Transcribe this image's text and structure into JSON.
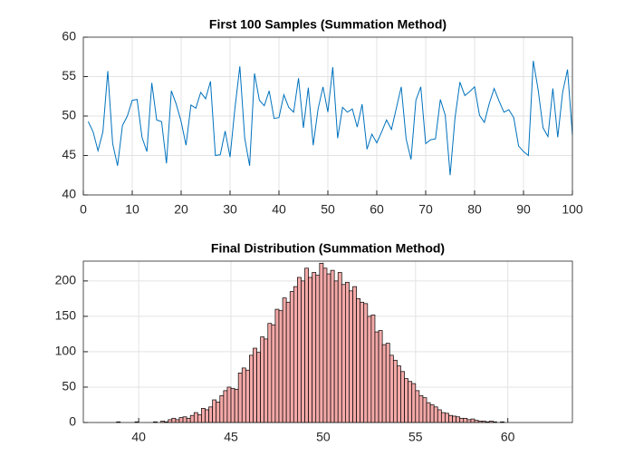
{
  "chart_data": [
    {
      "type": "line",
      "title": "First 100 Samples (Summation Method)",
      "color": "#0072bd",
      "grid": true,
      "x": [
        1,
        2,
        3,
        4,
        5,
        6,
        7,
        8,
        9,
        10,
        11,
        12,
        13,
        14,
        15,
        16,
        17,
        18,
        19,
        20,
        21,
        22,
        23,
        24,
        25,
        26,
        27,
        28,
        29,
        30,
        31,
        32,
        33,
        34,
        35,
        36,
        37,
        38,
        39,
        40,
        41,
        42,
        43,
        44,
        45,
        46,
        47,
        48,
        49,
        50,
        51,
        52,
        53,
        54,
        55,
        56,
        57,
        58,
        59,
        60,
        61,
        62,
        63,
        64,
        65,
        66,
        67,
        68,
        69,
        70,
        71,
        72,
        73,
        74,
        75,
        76,
        77,
        78,
        79,
        80,
        81,
        82,
        83,
        84,
        85,
        86,
        87,
        88,
        89,
        90,
        91,
        92,
        93,
        94,
        95,
        96,
        97,
        98,
        99,
        100
      ],
      "values": [
        49.3,
        48,
        45.6,
        48,
        55.7,
        46.5,
        43.7,
        48.8,
        50,
        52,
        52.1,
        47.3,
        45.5,
        54.2,
        49.5,
        49.3,
        44,
        53.2,
        51.5,
        49.3,
        46.3,
        51.4,
        51,
        53,
        52.2,
        54.4,
        45,
        45.1,
        48.1,
        44.8,
        51,
        56.3,
        47.2,
        43.7,
        55.4,
        52,
        51.3,
        53.2,
        49.7,
        49.8,
        52.7,
        51.1,
        50.5,
        54.8,
        48.5,
        53.6,
        46.3,
        50.9,
        53.7,
        50.5,
        56.2,
        47.2,
        51.1,
        50.5,
        50.9,
        48.6,
        51.5,
        45.8,
        47.7,
        46.6,
        48,
        49.5,
        48.3,
        51,
        53.7,
        47.1,
        44.5,
        52,
        53.7,
        46.5,
        47,
        47.1,
        52.1,
        50.1,
        42.5,
        49.8,
        54.3,
        52.6,
        53.1,
        53.7,
        50.1,
        49.2,
        51.6,
        53.5,
        51.9,
        50.5,
        50.8,
        49.8,
        46.2,
        45.5,
        45,
        57,
        53.3,
        48.5,
        47.4,
        53.5,
        47.3,
        53,
        55.9,
        47.6
      ],
      "xlim": [
        0,
        100
      ],
      "xticks": [
        0,
        10,
        20,
        30,
        40,
        50,
        60,
        70,
        80,
        90,
        100
      ],
      "ylim": [
        40,
        60
      ],
      "yticks": [
        40,
        45,
        50,
        55,
        60
      ]
    },
    {
      "type": "histogram",
      "title": "Final Distribution (Summation Method)",
      "color": "#f4a9a8",
      "edgecolor": "#000000",
      "grid": true,
      "bins": [
        38.8,
        39,
        39.2,
        39.4,
        39.6,
        39.8,
        40,
        40.2,
        40.4,
        40.6,
        40.8,
        41,
        41.2,
        41.4,
        41.6,
        41.8,
        42,
        42.2,
        42.4,
        42.6,
        42.8,
        43,
        43.2,
        43.4,
        43.6,
        43.8,
        44,
        44.2,
        44.4,
        44.6,
        44.8,
        45,
        45.2,
        45.4,
        45.6,
        45.8,
        46,
        46.2,
        46.4,
        46.6,
        46.8,
        47,
        47.2,
        47.4,
        47.6,
        47.8,
        48,
        48.2,
        48.4,
        48.6,
        48.8,
        49,
        49.2,
        49.4,
        49.6,
        49.8,
        50,
        50.2,
        50.4,
        50.6,
        50.8,
        51,
        51.2,
        51.4,
        51.6,
        51.8,
        52,
        52.2,
        52.4,
        52.6,
        52.8,
        53,
        53.2,
        53.4,
        53.6,
        53.8,
        54,
        54.2,
        54.4,
        54.6,
        54.8,
        55,
        55.2,
        55.4,
        55.6,
        55.8,
        56,
        56.2,
        56.4,
        56.6,
        56.8,
        57,
        57.2,
        57.4,
        57.6,
        57.8,
        58,
        58.2,
        58.4,
        58.6,
        58.8,
        59,
        59.2,
        59.4,
        59.6,
        59.8,
        60
      ],
      "values": [
        1,
        0,
        0,
        0,
        0,
        1,
        0,
        0,
        0,
        0,
        1,
        0,
        2,
        1,
        4,
        6,
        4,
        7,
        8,
        6,
        10,
        14,
        11,
        20,
        18,
        22,
        32,
        29,
        38,
        45,
        50,
        48,
        47,
        70,
        77,
        74,
        95,
        105,
        99,
        121,
        118,
        140,
        138,
        160,
        158,
        176,
        170,
        185,
        192,
        205,
        200,
        218,
        205,
        212,
        208,
        225,
        218,
        210,
        215,
        200,
        212,
        195,
        198,
        186,
        192,
        175,
        170,
        168,
        150,
        152,
        128,
        130,
        110,
        112,
        95,
        88,
        80,
        72,
        62,
        58,
        55,
        45,
        38,
        35,
        28,
        25,
        22,
        18,
        14,
        13,
        10,
        9,
        8,
        6,
        6,
        4,
        5,
        3,
        2,
        2,
        1,
        2,
        1,
        0,
        1,
        0
      ],
      "xlim": [
        37,
        63.5
      ],
      "xticks": [
        40,
        45,
        50,
        55,
        60
      ],
      "ylim": [
        0,
        228
      ],
      "yticks": [
        0,
        50,
        100,
        150,
        200
      ]
    }
  ]
}
